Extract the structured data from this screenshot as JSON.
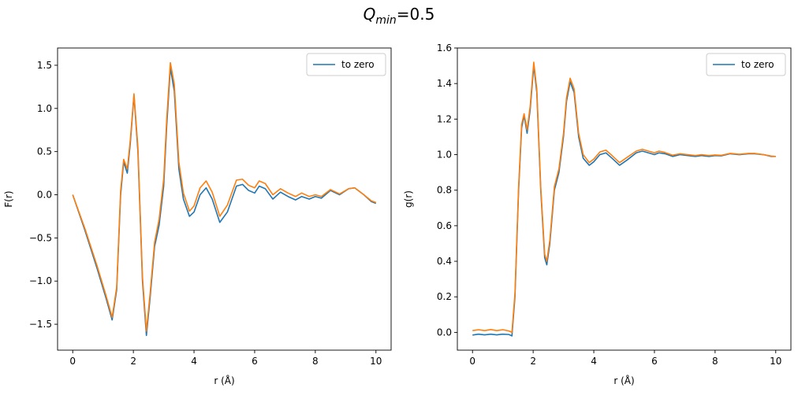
{
  "figure": {
    "suptitle_symbol": "Q",
    "suptitle_sub": "min",
    "suptitle_rest": "=0.5"
  },
  "chart_data": [
    {
      "type": "line",
      "xlabel": "r (Å)",
      "ylabel": "F(r)",
      "xlim": [
        -0.5,
        10.5
      ],
      "ylim": [
        -1.8,
        1.7
      ],
      "xticks": [
        0,
        2,
        4,
        6,
        8,
        10
      ],
      "yticks": [
        -1.5,
        -1.0,
        -0.5,
        0.0,
        0.5,
        1.0,
        1.5
      ],
      "ytick_labels": [
        "−1.5",
        "−1.0",
        "−0.5",
        "0.0",
        "0.5",
        "1.0",
        "1.5"
      ],
      "legend": "upper right",
      "series": [
        {
          "name": "to zero",
          "color": "#1f77b4",
          "points": [
            [
              0,
              0
            ],
            [
              0.4,
              -0.41
            ],
            [
              0.8,
              -0.85
            ],
            [
              1.1,
              -1.2
            ],
            [
              1.3,
              -1.45
            ],
            [
              1.45,
              -1.1
            ],
            [
              1.58,
              0.0
            ],
            [
              1.68,
              0.38
            ],
            [
              1.8,
              0.25
            ],
            [
              1.9,
              0.6
            ],
            [
              2.02,
              1.15
            ],
            [
              2.15,
              0.5
            ],
            [
              2.3,
              -1.0
            ],
            [
              2.43,
              -1.63
            ],
            [
              2.55,
              -1.2
            ],
            [
              2.7,
              -0.6
            ],
            [
              2.85,
              -0.35
            ],
            [
              3.0,
              0.1
            ],
            [
              3.1,
              0.8
            ],
            [
              3.22,
              1.47
            ],
            [
              3.35,
              1.2
            ],
            [
              3.5,
              0.3
            ],
            [
              3.65,
              -0.05
            ],
            [
              3.85,
              -0.25
            ],
            [
              4.0,
              -0.2
            ],
            [
              4.2,
              0.0
            ],
            [
              4.4,
              0.08
            ],
            [
              4.6,
              -0.05
            ],
            [
              4.85,
              -0.32
            ],
            [
              5.1,
              -0.2
            ],
            [
              5.4,
              0.1
            ],
            [
              5.6,
              0.12
            ],
            [
              5.8,
              0.05
            ],
            [
              6.0,
              0.02
            ],
            [
              6.15,
              0.1
            ],
            [
              6.35,
              0.07
            ],
            [
              6.6,
              -0.05
            ],
            [
              6.85,
              0.03
            ],
            [
              7.1,
              -0.02
            ],
            [
              7.35,
              -0.06
            ],
            [
              7.55,
              -0.02
            ],
            [
              7.8,
              -0.05
            ],
            [
              8.0,
              -0.02
            ],
            [
              8.2,
              -0.04
            ],
            [
              8.5,
              0.05
            ],
            [
              8.8,
              0.0
            ],
            [
              9.1,
              0.07
            ],
            [
              9.3,
              0.08
            ],
            [
              9.6,
              0.0
            ],
            [
              9.85,
              -0.08
            ],
            [
              10.0,
              -0.1
            ]
          ]
        },
        {
          "name": "",
          "color": "#ff7f0e",
          "points": [
            [
              0,
              0
            ],
            [
              0.4,
              -0.39
            ],
            [
              0.8,
              -0.82
            ],
            [
              1.1,
              -1.17
            ],
            [
              1.3,
              -1.42
            ],
            [
              1.45,
              -1.07
            ],
            [
              1.58,
              0.05
            ],
            [
              1.68,
              0.41
            ],
            [
              1.8,
              0.3
            ],
            [
              1.9,
              0.64
            ],
            [
              2.02,
              1.17
            ],
            [
              2.15,
              0.55
            ],
            [
              2.3,
              -0.95
            ],
            [
              2.43,
              -1.58
            ],
            [
              2.55,
              -1.15
            ],
            [
              2.7,
              -0.55
            ],
            [
              2.85,
              -0.28
            ],
            [
              3.0,
              0.18
            ],
            [
              3.1,
              0.88
            ],
            [
              3.22,
              1.53
            ],
            [
              3.35,
              1.28
            ],
            [
              3.5,
              0.38
            ],
            [
              3.65,
              0.02
            ],
            [
              3.85,
              -0.19
            ],
            [
              4.0,
              -0.13
            ],
            [
              4.2,
              0.08
            ],
            [
              4.4,
              0.16
            ],
            [
              4.6,
              0.03
            ],
            [
              4.85,
              -0.25
            ],
            [
              5.1,
              -0.12
            ],
            [
              5.4,
              0.17
            ],
            [
              5.6,
              0.18
            ],
            [
              5.8,
              0.11
            ],
            [
              6.0,
              0.08
            ],
            [
              6.15,
              0.16
            ],
            [
              6.35,
              0.13
            ],
            [
              6.6,
              0.0
            ],
            [
              6.85,
              0.07
            ],
            [
              7.1,
              0.02
            ],
            [
              7.35,
              -0.02
            ],
            [
              7.55,
              0.02
            ],
            [
              7.8,
              -0.02
            ],
            [
              8.0,
              0.0
            ],
            [
              8.2,
              -0.02
            ],
            [
              8.5,
              0.06
            ],
            [
              8.8,
              0.01
            ],
            [
              9.1,
              0.07
            ],
            [
              9.3,
              0.08
            ],
            [
              9.6,
              0.0
            ],
            [
              9.85,
              -0.07
            ],
            [
              10.0,
              -0.09
            ]
          ]
        }
      ]
    },
    {
      "type": "line",
      "xlabel": "r (Å)",
      "ylabel": "g(r)",
      "xlim": [
        -0.5,
        10.5
      ],
      "ylim": [
        -0.1,
        1.6
      ],
      "xticks": [
        0,
        2,
        4,
        6,
        8,
        10
      ],
      "yticks": [
        0.0,
        0.2,
        0.4,
        0.6,
        0.8,
        1.0,
        1.2,
        1.4,
        1.6
      ],
      "ytick_labels": [
        "0.0",
        "0.2",
        "0.4",
        "0.6",
        "0.8",
        "1.0",
        "1.2",
        "1.4",
        "1.6"
      ],
      "legend": "upper right",
      "series": [
        {
          "name": "to zero",
          "color": "#1f77b4",
          "points": [
            [
              0,
              -0.015
            ],
            [
              0.2,
              -0.01
            ],
            [
              0.4,
              -0.014
            ],
            [
              0.6,
              -0.01
            ],
            [
              0.8,
              -0.014
            ],
            [
              1.0,
              -0.01
            ],
            [
              1.2,
              -0.012
            ],
            [
              1.3,
              -0.02
            ],
            [
              1.4,
              0.2
            ],
            [
              1.52,
              0.8
            ],
            [
              1.62,
              1.15
            ],
            [
              1.7,
              1.22
            ],
            [
              1.8,
              1.12
            ],
            [
              1.9,
              1.25
            ],
            [
              2.02,
              1.5
            ],
            [
              2.12,
              1.35
            ],
            [
              2.25,
              0.8
            ],
            [
              2.38,
              0.42
            ],
            [
              2.45,
              0.38
            ],
            [
              2.55,
              0.5
            ],
            [
              2.7,
              0.8
            ],
            [
              2.85,
              0.9
            ],
            [
              3.0,
              1.1
            ],
            [
              3.1,
              1.3
            ],
            [
              3.22,
              1.41
            ],
            [
              3.35,
              1.35
            ],
            [
              3.5,
              1.1
            ],
            [
              3.65,
              0.98
            ],
            [
              3.85,
              0.94
            ],
            [
              4.0,
              0.96
            ],
            [
              4.2,
              1.0
            ],
            [
              4.4,
              1.01
            ],
            [
              4.6,
              0.98
            ],
            [
              4.85,
              0.94
            ],
            [
              5.1,
              0.97
            ],
            [
              5.4,
              1.01
            ],
            [
              5.6,
              1.02
            ],
            [
              5.8,
              1.01
            ],
            [
              6.0,
              1.0
            ],
            [
              6.15,
              1.01
            ],
            [
              6.35,
              1.005
            ],
            [
              6.6,
              0.99
            ],
            [
              6.85,
              1.0
            ],
            [
              7.1,
              0.995
            ],
            [
              7.35,
              0.99
            ],
            [
              7.55,
              0.995
            ],
            [
              7.8,
              0.99
            ],
            [
              8.0,
              0.995
            ],
            [
              8.2,
              0.993
            ],
            [
              8.5,
              1.005
            ],
            [
              8.8,
              1.0
            ],
            [
              9.1,
              1.005
            ],
            [
              9.3,
              1.005
            ],
            [
              9.6,
              1.0
            ],
            [
              9.85,
              0.99
            ],
            [
              10.0,
              0.99
            ]
          ]
        },
        {
          "name": "",
          "color": "#ff7f0e",
          "points": [
            [
              0,
              0.01
            ],
            [
              0.2,
              0.015
            ],
            [
              0.4,
              0.01
            ],
            [
              0.6,
              0.016
            ],
            [
              0.8,
              0.01
            ],
            [
              1.0,
              0.015
            ],
            [
              1.2,
              0.008
            ],
            [
              1.3,
              0.0
            ],
            [
              1.4,
              0.22
            ],
            [
              1.52,
              0.82
            ],
            [
              1.62,
              1.17
            ],
            [
              1.7,
              1.23
            ],
            [
              1.8,
              1.14
            ],
            [
              1.9,
              1.27
            ],
            [
              2.02,
              1.52
            ],
            [
              2.12,
              1.37
            ],
            [
              2.25,
              0.82
            ],
            [
              2.38,
              0.44
            ],
            [
              2.45,
              0.4
            ],
            [
              2.55,
              0.52
            ],
            [
              2.7,
              0.82
            ],
            [
              2.85,
              0.92
            ],
            [
              3.0,
              1.12
            ],
            [
              3.1,
              1.32
            ],
            [
              3.22,
              1.43
            ],
            [
              3.35,
              1.37
            ],
            [
              3.5,
              1.12
            ],
            [
              3.65,
              1.0
            ],
            [
              3.85,
              0.955
            ],
            [
              4.0,
              0.975
            ],
            [
              4.2,
              1.015
            ],
            [
              4.4,
              1.025
            ],
            [
              4.6,
              0.995
            ],
            [
              4.85,
              0.955
            ],
            [
              5.1,
              0.985
            ],
            [
              5.4,
              1.02
            ],
            [
              5.6,
              1.03
            ],
            [
              5.8,
              1.02
            ],
            [
              6.0,
              1.01
            ],
            [
              6.15,
              1.02
            ],
            [
              6.35,
              1.012
            ],
            [
              6.6,
              0.997
            ],
            [
              6.85,
              1.005
            ],
            [
              7.1,
              1.0
            ],
            [
              7.35,
              0.995
            ],
            [
              7.55,
              1.0
            ],
            [
              7.8,
              0.995
            ],
            [
              8.0,
              0.998
            ],
            [
              8.2,
              0.996
            ],
            [
              8.5,
              1.007
            ],
            [
              8.8,
              1.002
            ],
            [
              9.1,
              1.007
            ],
            [
              9.3,
              1.007
            ],
            [
              9.6,
              1.0
            ],
            [
              9.85,
              0.992
            ],
            [
              10.0,
              0.99
            ]
          ]
        }
      ]
    }
  ]
}
